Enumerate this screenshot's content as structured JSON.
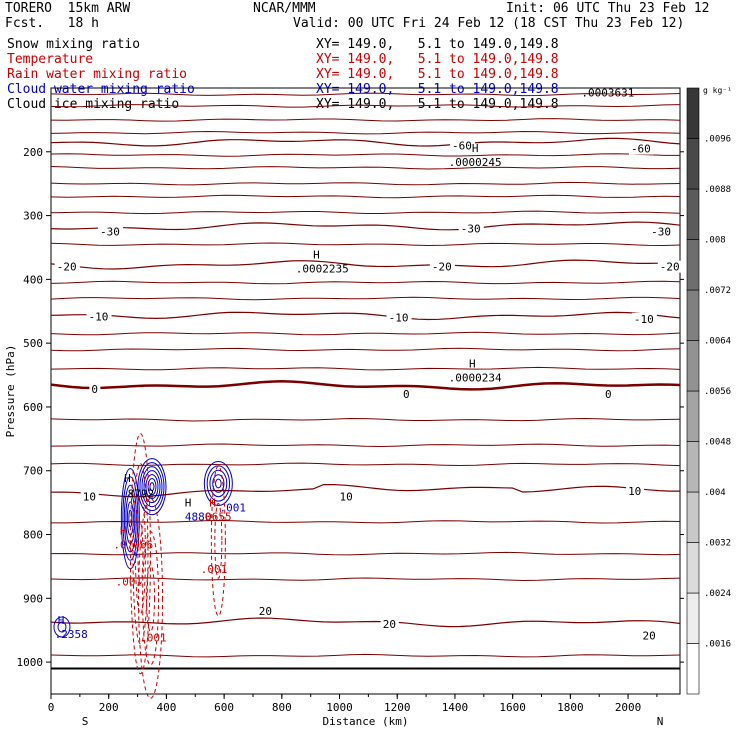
{
  "header": {
    "model": "TORERO  15km ARW",
    "center": "NCAR/MMM",
    "init": "Init: 06 UTC Thu 23 Feb 12",
    "fcst": "Fcst.   18 h",
    "valid": "Valid: 00 UTC Fri 24 Feb 12 (18 CST Thu 23 Feb 12)"
  },
  "fields": [
    {
      "name": "Snow mixing ratio",
      "xy": "XY= 149.0,   5.1 to 149.0,149.8",
      "color": "#000000"
    },
    {
      "name": "Temperature",
      "xy": "XY= 149.0,   5.1 to 149.0,149.8",
      "color": "#cc0000"
    },
    {
      "name": "Rain water mixing ratio",
      "xy": "XY= 149.0,   5.1 to 149.0,149.8",
      "color": "#cc0000"
    },
    {
      "name": "Cloud water mixing ratio",
      "xy": "XY= 149.0,   5.1 to 149.0,149.8",
      "color": "#0000cc"
    },
    {
      "name": "Cloud ice mixing ratio",
      "xy": "XY= 149.0,   5.1 to 149.0,149.8",
      "color": "#000000"
    }
  ],
  "chart_data": {
    "type": "contour",
    "xlabel": "Distance (km)",
    "ylabel": "Pressure (hPa)",
    "xlim": [
      0,
      2180
    ],
    "ylim": [
      1050,
      100
    ],
    "xticks": [
      0,
      200,
      400,
      600,
      800,
      1000,
      1200,
      1400,
      1600,
      1800,
      2000
    ],
    "yticks": [
      200,
      300,
      400,
      500,
      600,
      700,
      800,
      900,
      1000
    ],
    "x_end_labels": {
      "left": "S",
      "right": "N"
    },
    "temperature_contours": [
      {
        "value": -60,
        "label": "-60",
        "p_left": 185,
        "p_right": 185
      },
      {
        "value": -30,
        "label": "-30",
        "p_left": 318,
        "p_right": 315
      },
      {
        "value": -20,
        "label": "-20",
        "p_left": 378,
        "p_right": 375
      },
      {
        "value": -10,
        "label": "-10",
        "p_left": 455,
        "p_right": 458
      },
      {
        "value": 0,
        "label": "0",
        "p_left": 565,
        "p_right": 568
      },
      {
        "value": 10,
        "label": "10",
        "p_left": 735,
        "p_right": 730
      },
      {
        "value": 20,
        "label": "20",
        "p_left": 935,
        "p_right": 940
      }
    ],
    "temperature_label_positions": [
      {
        "label": "-60",
        "x": 1390,
        "p": 190
      },
      {
        "label": "-60",
        "x": 2010,
        "p": 195
      },
      {
        "label": "-30",
        "x": 170,
        "p": 325
      },
      {
        "label": "-30",
        "x": 1420,
        "p": 320
      },
      {
        "label": "-30",
        "x": 2080,
        "p": 325
      },
      {
        "label": "-20",
        "x": 20,
        "p": 380
      },
      {
        "label": "-20",
        "x": 1320,
        "p": 380
      },
      {
        "label": "-20",
        "x": 2110,
        "p": 380
      },
      {
        "label": "-10",
        "x": 130,
        "p": 458
      },
      {
        "label": "-10",
        "x": 1170,
        "p": 460
      },
      {
        "label": "-10",
        "x": 2020,
        "p": 462
      },
      {
        "label": "0",
        "x": 140,
        "p": 572
      },
      {
        "label": "0",
        "x": 1220,
        "p": 580
      },
      {
        "label": "0",
        "x": 1920,
        "p": 580
      },
      {
        "label": "10",
        "x": 110,
        "p": 740
      },
      {
        "label": "10",
        "x": 1000,
        "p": 740
      },
      {
        "label": "10",
        "x": 2000,
        "p": 732
      },
      {
        "label": "20",
        "x": 720,
        "p": 920
      },
      {
        "label": "20",
        "x": 1150,
        "p": 940
      },
      {
        "label": "20",
        "x": 2050,
        "p": 958
      }
    ],
    "annotations": [
      {
        "text": "H",
        "x": 1470,
        "p": 200,
        "color": "#000000"
      },
      {
        "text": ".0000245",
        "x": 1470,
        "p": 222,
        "color": "#000000"
      },
      {
        "text": "H",
        "x": 920,
        "p": 367,
        "color": "#000000"
      },
      {
        "text": ".0002235",
        "x": 940,
        "p": 389,
        "color": "#000000"
      },
      {
        "text": "H",
        "x": 1460,
        "p": 538,
        "color": "#000000"
      },
      {
        "text": ".0000234",
        "x": 1470,
        "p": 560,
        "color": "#000000"
      },
      {
        "text": ".0003631",
        "x": 1930,
        "p": 113,
        "color": "#000000"
      },
      {
        "text": "H",
        "x": 265,
        "p": 718,
        "color": "#000000"
      },
      {
        "text": ".8792",
        "x": 300,
        "p": 742,
        "color": "#000000"
      },
      {
        "text": "H",
        "x": 475,
        "p": 756,
        "color": "#000000"
      },
      {
        "text": "H",
        "x": 560,
        "p": 756,
        "color": "#cc0000"
      },
      {
        "text": "4880",
        "x": 510,
        "p": 778,
        "color": "#0000cc"
      },
      {
        "text": "0655",
        "x": 580,
        "p": 778,
        "color": "#cc0000"
      },
      {
        "text": ".001",
        "x": 630,
        "p": 764,
        "color": "#0000cc"
      },
      {
        "text": "H",
        "x": 250,
        "p": 800,
        "color": "#cc0000"
      },
      {
        "text": ".07066",
        "x": 285,
        "p": 822,
        "color": "#cc0000"
      },
      {
        "text": ".001",
        "x": 565,
        "p": 860,
        "color": "#cc0000"
      },
      {
        "text": ".001",
        "x": 270,
        "p": 880,
        "color": "#cc0000"
      },
      {
        "text": ".001",
        "x": 355,
        "p": 968,
        "color": "#cc0000"
      },
      {
        "text": "H",
        "x": 35,
        "p": 940,
        "color": "#0000cc"
      },
      {
        "text": ".2358",
        "x": 70,
        "p": 962,
        "color": "#0000cc"
      }
    ],
    "colorbar": {
      "unit": "g kg⁻¹",
      "ticks": [
        ".0016",
        ".0024",
        ".0032",
        ".004",
        ".0048",
        ".0056",
        ".0064",
        ".0072",
        ".008",
        ".0088",
        ".0096"
      ]
    }
  }
}
